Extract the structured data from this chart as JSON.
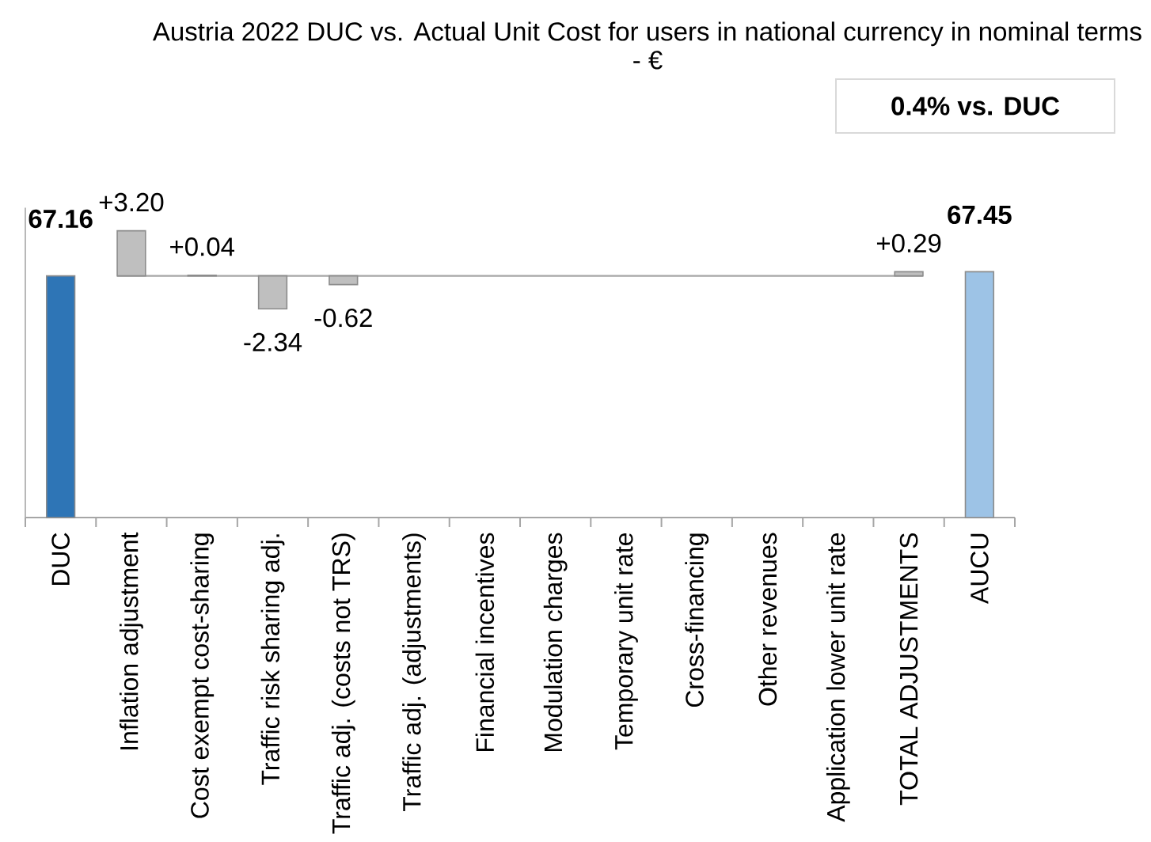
{
  "chart_data": {
    "type": "bar",
    "title": "Austria 2022 DUC vs. Actual Unit Cost for users in national currency in nominal terms - €",
    "categories": [
      "DUC",
      "Inflation adjustment",
      "Cost exempt cost-sharing",
      "Traffic risk sharing adj.",
      "Traffic adj. (costs not TRS)",
      "Traffic adj. (adjustments)",
      "Financial incentives",
      "Modulation charges",
      "Temporary unit rate",
      "Cross-financing",
      "Other revenues",
      "Application lower unit rate",
      "TOTAL ADJUSTMENTS",
      "AUCU"
    ],
    "series": [
      {
        "values": [
          67.16,
          null,
          null,
          null,
          null,
          null,
          null,
          null,
          null,
          null,
          null,
          null,
          null,
          67.45
        ],
        "colors": [
          "#2e75b6",
          null,
          null,
          null,
          null,
          null,
          null,
          null,
          null,
          null,
          null,
          null,
          null,
          "#9dc3e6"
        ],
        "value_labels": [
          "67.16",
          null,
          null,
          null,
          null,
          null,
          null,
          null,
          null,
          null,
          null,
          null,
          null,
          "67.45"
        ]
      },
      {
        "axis": "y2",
        "values": [
          null,
          3.2,
          0.04,
          -2.34,
          -0.62,
          null,
          null,
          null,
          null,
          null,
          null,
          null,
          0.29,
          null
        ],
        "color": "#bfbfbf",
        "value_labels": [
          null,
          "+3.20",
          "+0.04",
          "-2.34",
          "-0.62",
          null,
          null,
          null,
          null,
          null,
          null,
          null,
          "+0.29",
          null
        ]
      }
    ],
    "ylim": [
      50,
      72
    ],
    "tick_labels": "x",
    "ref_lines": [
      {
        "axis": "y",
        "value": 67.16,
        "color": "#a6a6a6"
      }
    ],
    "annotations": [
      "0.4% vs. DUC"
    ]
  }
}
